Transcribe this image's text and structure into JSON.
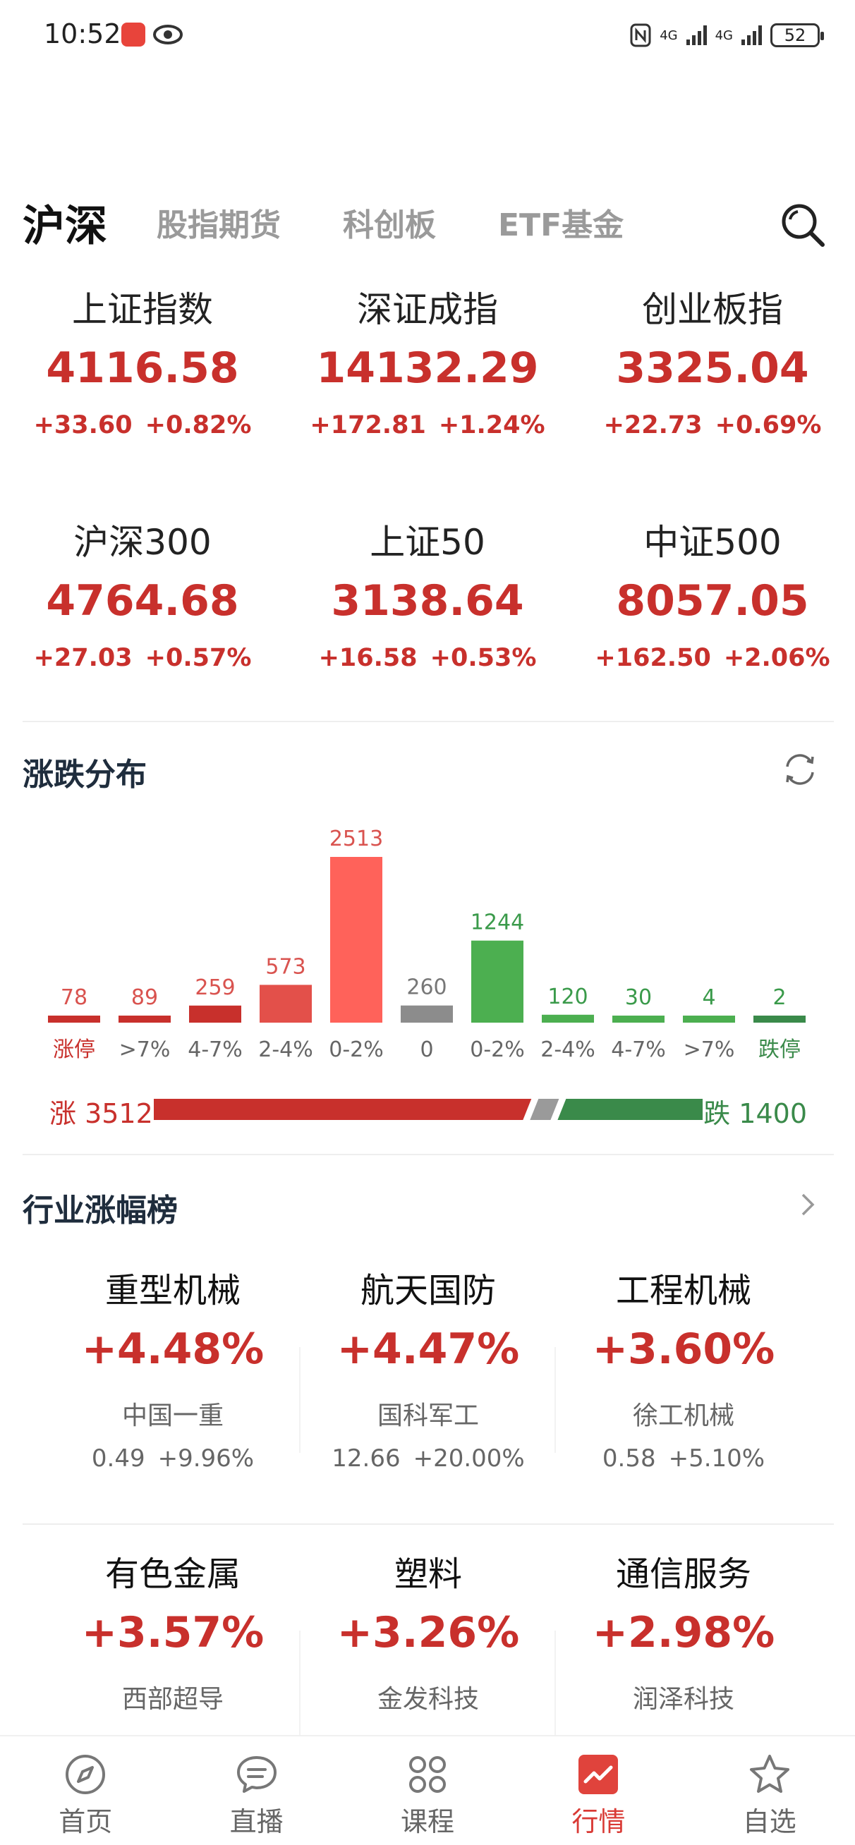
{
  "status_bar": {
    "time": "10:52",
    "network_1": "4G",
    "network_2": "4G",
    "battery": "52"
  },
  "tabs": [
    {
      "label": "沪深",
      "active": true
    },
    {
      "label": "股指期货",
      "active": false
    },
    {
      "label": "科创板",
      "active": false
    },
    {
      "label": "ETF基金",
      "active": false
    }
  ],
  "indices": [
    {
      "name": "上证指数",
      "value": "4116.58",
      "change": "+33.60",
      "pct": "+0.82%"
    },
    {
      "name": "深证成指",
      "value": "14132.29",
      "change": "+172.81",
      "pct": "+1.24%"
    },
    {
      "name": "创业板指",
      "value": "3325.04",
      "change": "+22.73",
      "pct": "+0.69%"
    },
    {
      "name": "沪深300",
      "value": "4764.68",
      "change": "+27.03",
      "pct": "+0.57%"
    },
    {
      "name": "上证50",
      "value": "3138.64",
      "change": "+16.58",
      "pct": "+0.53%"
    },
    {
      "name": "中证500",
      "value": "8057.05",
      "change": "+162.50",
      "pct": "+2.06%"
    }
  ],
  "distribution": {
    "title": "涨跌分布",
    "up_label": "涨 3512",
    "down_label": "跌 1400",
    "up_count": 3512,
    "down_count": 1400,
    "flat_count": 260,
    "colors": {
      "up": "#c8302c",
      "up_light": "#ff625a",
      "flat": "#8c8c8c",
      "down": "#3a8a4a",
      "down_light": "#4caf50"
    }
  },
  "chart_data": {
    "type": "bar",
    "categories": [
      "涨停",
      ">7%",
      "4-7%",
      "2-4%",
      "0-2%",
      "0",
      "0-2%",
      "2-4%",
      "4-7%",
      ">7%",
      "跌停"
    ],
    "values": [
      78,
      89,
      259,
      573,
      2513,
      260,
      1244,
      120,
      30,
      4,
      2
    ],
    "groups": [
      "up",
      "up",
      "up",
      "up",
      "up",
      "flat",
      "down",
      "down",
      "down",
      "down",
      "down"
    ],
    "title": "涨跌分布",
    "xlabel": "",
    "ylabel": ""
  },
  "industry": {
    "title": "行业涨幅榜",
    "items": [
      {
        "name": "重型机械",
        "pct": "+4.48%",
        "stock": "中国一重",
        "price": "0.49",
        "stock_pct": "+9.96%"
      },
      {
        "name": "航天国防",
        "pct": "+4.47%",
        "stock": "国科军工",
        "price": "12.66",
        "stock_pct": "+20.00%"
      },
      {
        "name": "工程机械",
        "pct": "+3.60%",
        "stock": "徐工机械",
        "price": "0.58",
        "stock_pct": "+5.10%"
      },
      {
        "name": "有色金属",
        "pct": "+3.57%",
        "stock": "西部超导",
        "price": "",
        "stock_pct": ""
      },
      {
        "name": "塑料",
        "pct": "+3.26%",
        "stock": "金发科技",
        "price": "",
        "stock_pct": ""
      },
      {
        "name": "通信服务",
        "pct": "+2.98%",
        "stock": "润泽科技",
        "price": "",
        "stock_pct": ""
      }
    ]
  },
  "bottom_nav": [
    {
      "label": "首页",
      "icon": "compass-icon",
      "active": false
    },
    {
      "label": "直播",
      "icon": "chat-bubble-icon",
      "active": false
    },
    {
      "label": "课程",
      "icon": "grid-clover-icon",
      "active": false
    },
    {
      "label": "行情",
      "icon": "chart-line-icon",
      "active": true
    },
    {
      "label": "自选",
      "icon": "star-icon",
      "active": false
    }
  ]
}
